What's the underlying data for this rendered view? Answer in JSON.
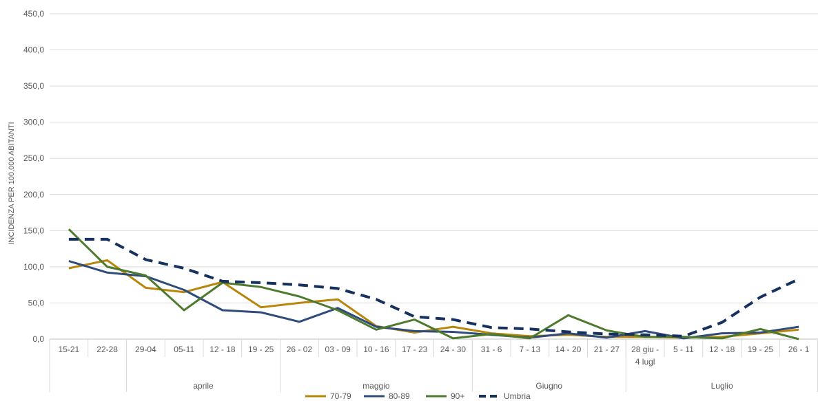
{
  "chart_data": {
    "type": "line",
    "ylabel": "INCIDENZA PER 100,000 ABITANTI",
    "ylim": [
      0,
      450
    ],
    "yticks": [
      "0,0",
      "50,0",
      "100,0",
      "150,0",
      "200,0",
      "250,0",
      "300,0",
      "350,0",
      "400,0",
      "450,0"
    ],
    "grid": true,
    "legend_position": "bottom",
    "categories": [
      [
        "15-21"
      ],
      [
        "22-28"
      ],
      [
        "29-04"
      ],
      [
        "05-11"
      ],
      [
        "12 - 18"
      ],
      [
        "19 - 25"
      ],
      [
        "26 - 02"
      ],
      [
        "03 - 09"
      ],
      [
        "10 - 16"
      ],
      [
        "17 - 23"
      ],
      [
        "24 - 30"
      ],
      [
        "31 - 6"
      ],
      [
        "7 - 13"
      ],
      [
        "14 - 20"
      ],
      [
        "21 - 27"
      ],
      [
        "28 giu -",
        "4 lugl"
      ],
      [
        "5 - 11"
      ],
      [
        "12 - 18"
      ],
      [
        "19 - 25"
      ],
      [
        "26 - 1"
      ]
    ],
    "month_groups": [
      {
        "label": "",
        "start": 0,
        "end": 1
      },
      {
        "label": "aprile",
        "start": 2,
        "end": 5
      },
      {
        "label": "maggio",
        "start": 6,
        "end": 10
      },
      {
        "label": "Giugno",
        "start": 11,
        "end": 14
      },
      {
        "label": "Luglio",
        "start": 15,
        "end": 19
      }
    ],
    "series": [
      {
        "name": "70-79",
        "color": "#B8860B",
        "dash": false,
        "values": [
          98,
          109,
          71,
          65,
          79,
          44,
          50,
          55,
          18,
          9,
          17,
          8,
          4,
          6,
          3,
          3,
          2,
          3,
          8,
          13
        ]
      },
      {
        "name": "80-89",
        "color": "#2F4B7C",
        "dash": false,
        "values": [
          108,
          92,
          87,
          68,
          40,
          37,
          24,
          43,
          17,
          11,
          10,
          6,
          2,
          8,
          2,
          11,
          1,
          8,
          9,
          17
        ]
      },
      {
        "name": "90+",
        "color": "#4E7A2E",
        "dash": false,
        "values": [
          152,
          100,
          88,
          40,
          78,
          72,
          59,
          40,
          13,
          27,
          1,
          7,
          1,
          33,
          12,
          3,
          3,
          1,
          14,
          0
        ]
      },
      {
        "name": "Umbria",
        "color": "#16315E",
        "dash": true,
        "values": [
          138,
          138,
          110,
          98,
          80,
          78,
          75,
          70,
          55,
          31,
          27,
          16,
          14,
          10,
          7,
          6,
          4,
          23,
          58,
          83
        ]
      }
    ]
  }
}
